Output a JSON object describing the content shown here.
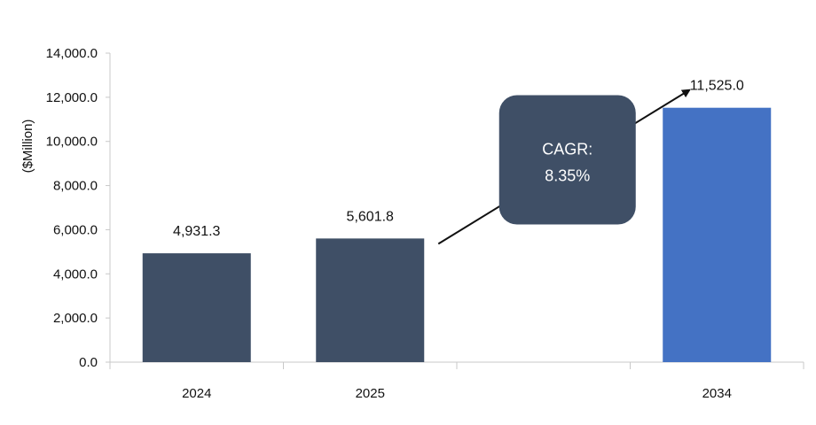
{
  "chart_data": {
    "type": "bar",
    "title": "",
    "xlabel": "",
    "ylabel": "($Million)",
    "categories": [
      "2024",
      "2025",
      "",
      "2034"
    ],
    "values": [
      4931.3,
      5601.8,
      null,
      11525.0
    ],
    "value_labels": [
      "4,931.3",
      "5,601.8",
      "",
      "11,525.0"
    ],
    "bar_colors": [
      "#3f4f66",
      "#3f4f66",
      null,
      "#4472c4"
    ],
    "ylim": [
      0,
      14000
    ],
    "yticks": [
      0,
      2000,
      4000,
      6000,
      8000,
      10000,
      12000,
      14000
    ],
    "ytick_labels": [
      "0.0",
      "2,000.0",
      "4,000.0",
      "6,000.0",
      "8,000.0",
      "10,000.0",
      "12,000.0",
      "14,000.0"
    ],
    "grid": false,
    "legend": "none",
    "annotation": {
      "line1": "CAGR:",
      "line2": "8.35%",
      "box_color": "#3f4f66",
      "arrow_from_category": "2025",
      "arrow_to_category": "2034"
    }
  }
}
